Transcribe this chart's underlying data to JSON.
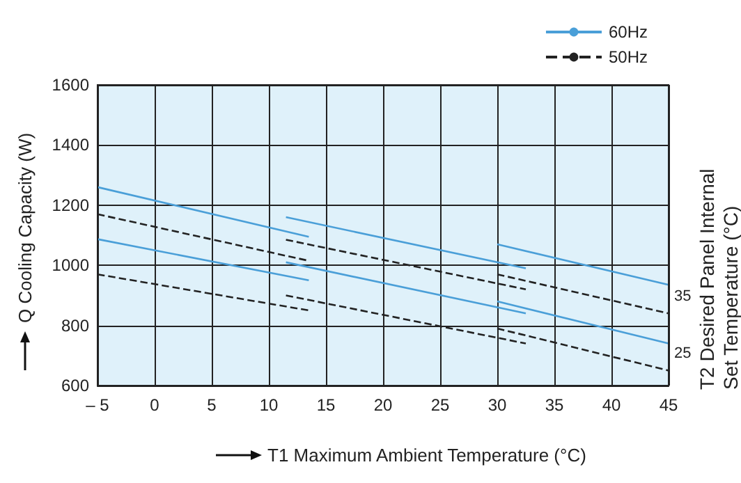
{
  "chart_data": {
    "type": "line",
    "xlabel": "T1 Maximum Ambient Temperature (°C)",
    "ylabel": "Q Cooling Capacity (W)",
    "y2label": "T2 Desired Panel Internal Set Temperature (°C)",
    "xlim": [
      -5,
      45
    ],
    "xticks": [
      {
        "value": -5,
        "label": "– 5"
      },
      0,
      5,
      10,
      15,
      20,
      25,
      30,
      35,
      40,
      45
    ],
    "ylim": [
      600,
      1600
    ],
    "yticks": [
      600,
      800,
      1000,
      1200,
      1400,
      1600
    ],
    "grid": true,
    "legend": "top right",
    "marker": "none",
    "series": [
      {
        "name": "60Hz",
        "color": "#4a9fd8",
        "line_style": "solid",
        "x": [
          -5,
          13.5
        ],
        "values": [
          1260,
          1095
        ]
      },
      {
        "color": "#4a9fd8",
        "line_style": "solid",
        "x": [
          -5,
          13.5
        ],
        "values": [
          1087,
          950
        ]
      },
      {
        "color": "#4a9fd8",
        "line_style": "solid",
        "x": [
          11.5,
          32.5
        ],
        "values": [
          1160,
          990
        ]
      },
      {
        "color": "#4a9fd8",
        "line_style": "solid",
        "x": [
          11.5,
          32.5
        ],
        "values": [
          1010,
          840
        ]
      },
      {
        "color": "#4a9fd8",
        "line_style": "solid",
        "x": [
          30,
          45
        ],
        "values": [
          1070,
          935
        ]
      },
      {
        "color": "#4a9fd8",
        "line_style": "solid",
        "x": [
          30,
          45
        ],
        "values": [
          880,
          740
        ]
      },
      {
        "name": "50Hz",
        "color": "#222222",
        "line_style": "dashed",
        "x": [
          -5,
          13.5
        ],
        "values": [
          1170,
          1015
        ]
      },
      {
        "color": "#222222",
        "line_style": "dashed",
        "x": [
          -5,
          13.5
        ],
        "values": [
          970,
          850
        ]
      },
      {
        "color": "#222222",
        "line_style": "dashed",
        "x": [
          11.5,
          32.5
        ],
        "values": [
          1085,
          920
        ]
      },
      {
        "color": "#222222",
        "line_style": "dashed",
        "x": [
          11.5,
          32.5
        ],
        "values": [
          900,
          740
        ]
      },
      {
        "color": "#222222",
        "line_style": "dashed",
        "x": [
          30,
          45
        ],
        "values": [
          970,
          840
        ]
      },
      {
        "color": "#222222",
        "line_style": "dashed",
        "x": [
          30,
          45
        ],
        "values": [
          790,
          650
        ]
      }
    ],
    "annotations": [
      {
        "text": "35",
        "x": 45,
        "y": 840
      },
      {
        "text": "25",
        "x": 45,
        "y": 650
      }
    ]
  }
}
